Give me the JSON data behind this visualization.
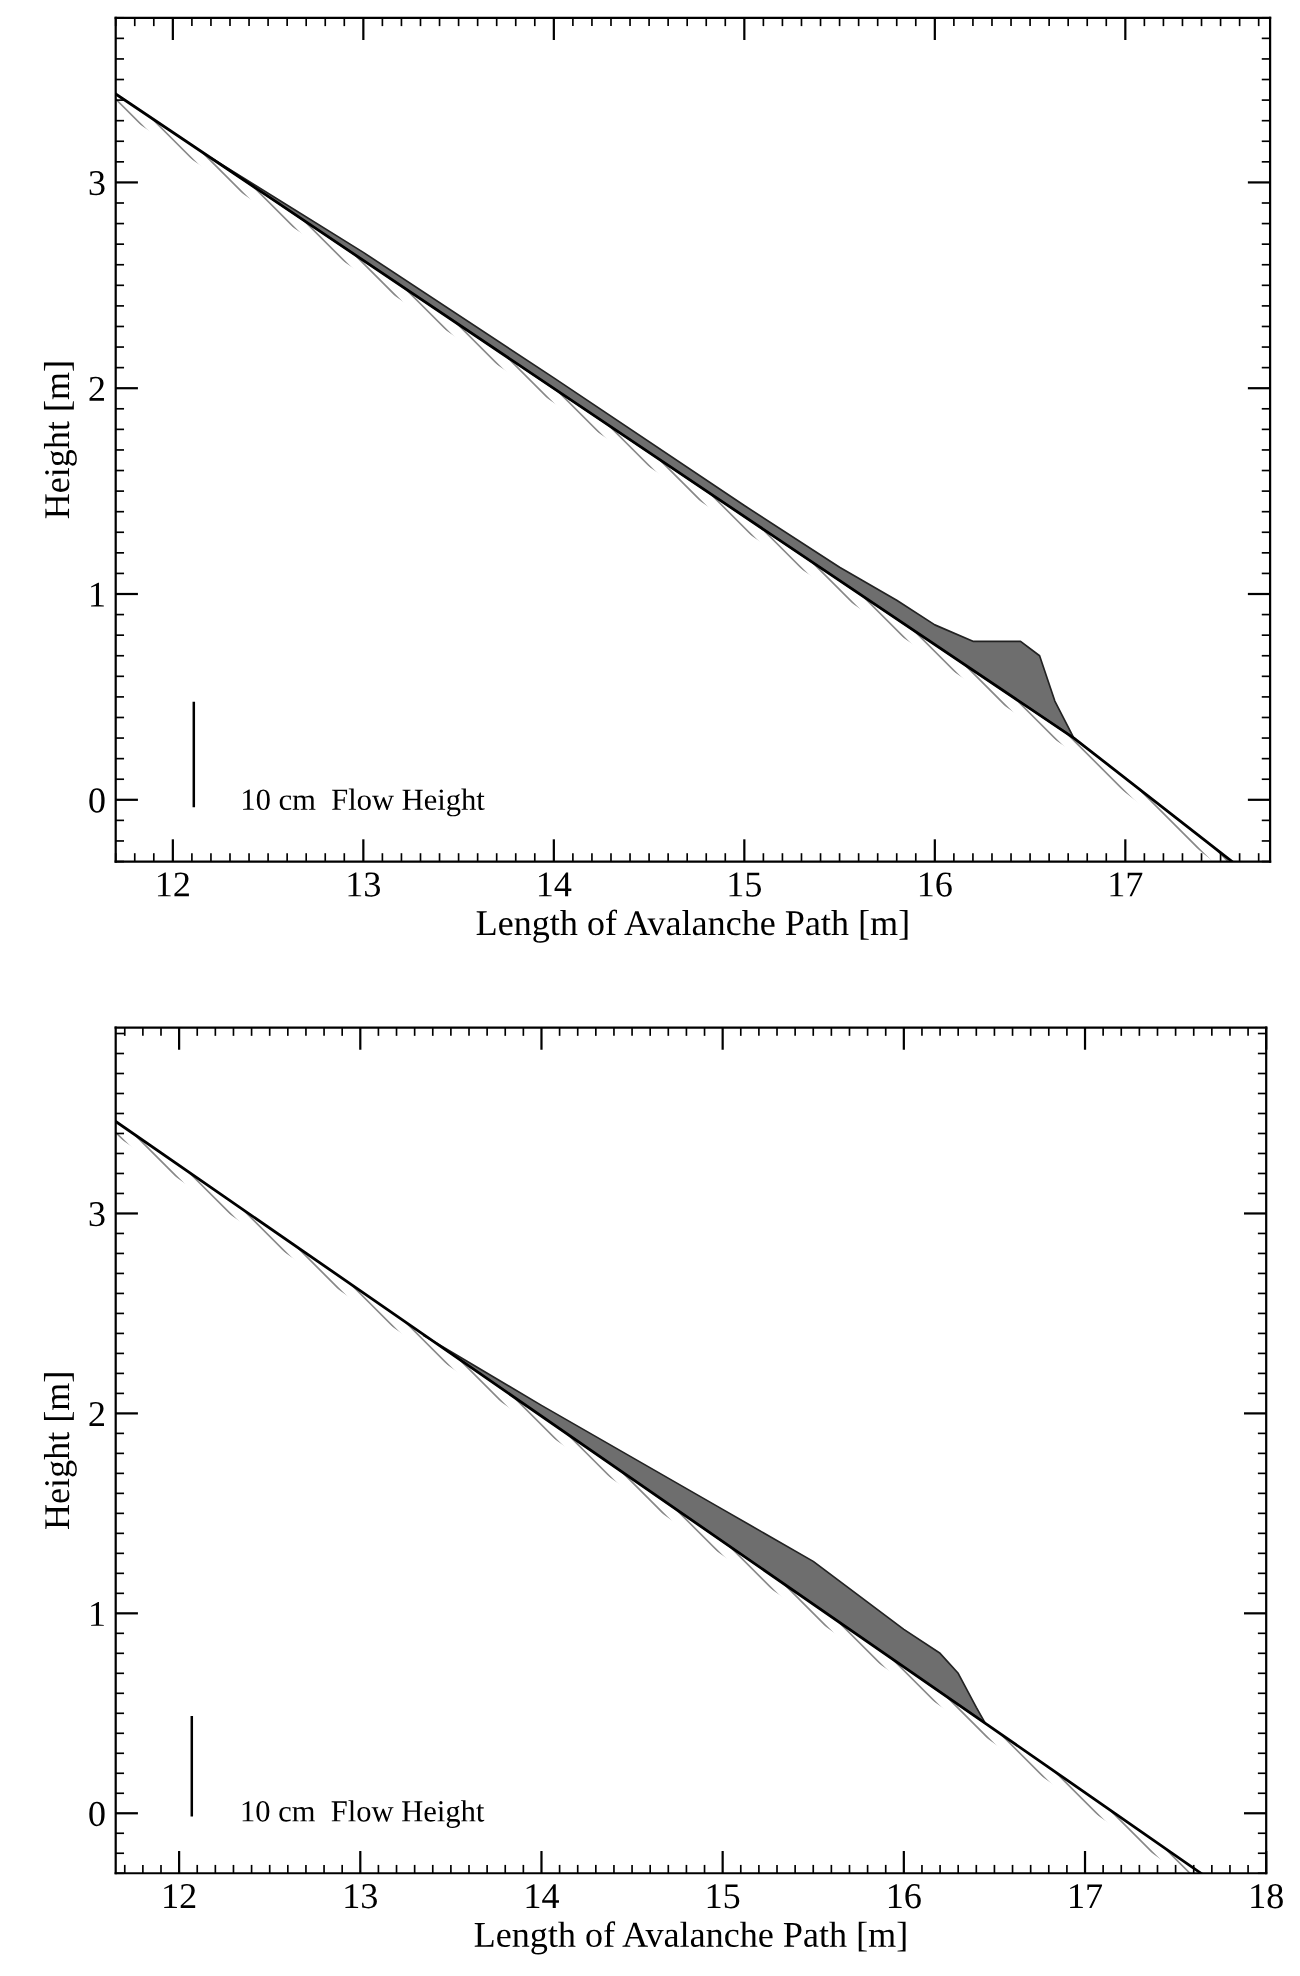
{
  "chart_data": [
    {
      "type": "area",
      "xlabel": "Length of Avalanche Path [m]",
      "ylabel": "Height [m]",
      "xlim": [
        11.7,
        17.76
      ],
      "ylim": [
        -0.3,
        3.8
      ],
      "xticks": [
        12,
        13,
        14,
        15,
        16,
        17
      ],
      "yticks": [
        0,
        1,
        2,
        3
      ],
      "series": [
        {
          "color": "#6e6e6e",
          "x": [
            12.2,
            13,
            14,
            15,
            15.5,
            15.8,
            16.0,
            16.2,
            16.45,
            16.55,
            16.63,
            16.73
          ],
          "values": [
            3.12,
            2.66,
            2.05,
            1.43,
            1.13,
            0.97,
            0.85,
            0.77,
            0.77,
            0.7,
            0.48,
            0.3
          ]
        },
        {
          "color": "#000000",
          "x": [
            11.7,
            16.73,
            17.56
          ],
          "values": [
            3.43,
            0.3,
            -0.3
          ]
        },
        {
          "type": "line",
          "color": "#000000",
          "x": [
            12.11,
            12.11
          ],
          "values": [
            -0.03,
            0.47
          ]
        }
      ],
      "annotations": [
        "10 cm  Flow Height"
      ]
    },
    {
      "type": "area",
      "xlabel": "Length of Avalanche Path [m]",
      "ylabel": "Height [m]",
      "xlim": [
        11.65,
        18.0
      ],
      "ylim": [
        -0.3,
        3.93
      ],
      "xticks": [
        12,
        13,
        14,
        15,
        16,
        17,
        18
      ],
      "yticks": [
        0,
        1,
        2,
        3
      ],
      "series": [
        {
          "color": "#6e6e6e",
          "x": [
            13.35,
            14,
            15,
            15.5,
            16,
            16.2,
            16.3,
            16.4,
            16.45
          ],
          "values": [
            2.39,
            2.04,
            1.52,
            1.26,
            0.92,
            0.8,
            0.7,
            0.53,
            0.45
          ]
        },
        {
          "color": "#000000",
          "x": [
            11.65,
            16.45,
            17.64
          ],
          "values": [
            3.46,
            0.45,
            -0.3
          ]
        },
        {
          "type": "line",
          "color": "#000000",
          "x": [
            12.07,
            12.07
          ],
          "values": [
            -0.01,
            0.48
          ]
        }
      ],
      "annotations": [
        "10 cm  Flow Height"
      ]
    }
  ]
}
